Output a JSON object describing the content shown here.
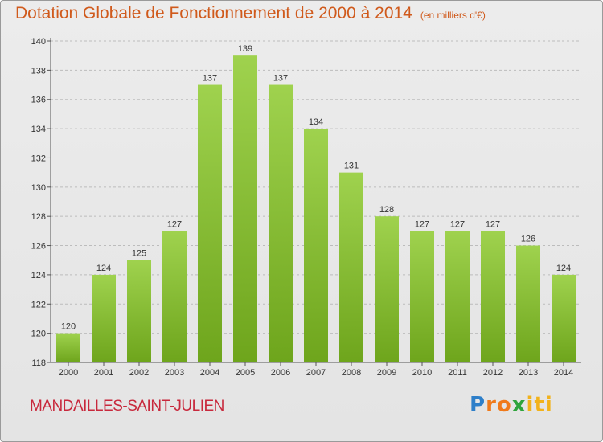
{
  "header": {
    "title": "Dotation Globale de Fonctionnement de 2000 à 2014",
    "unit": "(en milliers d'€)"
  },
  "footer": {
    "commune": "MANDAILLES-SAINT-JULIEN",
    "logo_parts": [
      "P",
      "ro",
      "x",
      "iti"
    ]
  },
  "colors": {
    "title": "#d05a1c",
    "commune": "#c8283c",
    "bar_top": "#9fd24e",
    "bar_bottom": "#6ea51c"
  },
  "chart_data": {
    "type": "bar",
    "title": "Dotation Globale de Fonctionnement de 2000 à 2014",
    "subtitle": "(en milliers d'€)",
    "categories": [
      "2000",
      "2001",
      "2002",
      "2003",
      "2004",
      "2005",
      "2006",
      "2007",
      "2008",
      "2009",
      "2010",
      "2011",
      "2012",
      "2013",
      "2014"
    ],
    "values": [
      120,
      124,
      125,
      127,
      137,
      139,
      137,
      134,
      131,
      128,
      127,
      127,
      127,
      126,
      124
    ],
    "ylim": [
      118,
      140
    ],
    "yticks": [
      118,
      120,
      122,
      124,
      126,
      128,
      130,
      132,
      134,
      136,
      138,
      140
    ],
    "grid": true,
    "data_labels": true
  }
}
